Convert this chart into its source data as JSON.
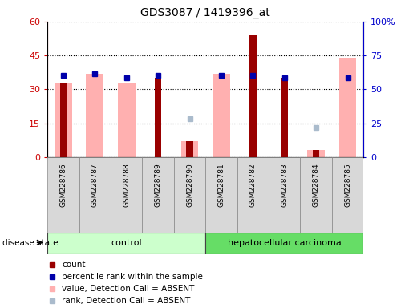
{
  "title": "GDS3087 / 1419396_at",
  "samples": [
    "GSM228786",
    "GSM228787",
    "GSM228788",
    "GSM228789",
    "GSM228790",
    "GSM228781",
    "GSM228782",
    "GSM228783",
    "GSM228784",
    "GSM228785"
  ],
  "count_values": [
    33,
    0,
    0,
    35,
    7,
    0,
    54,
    35,
    3,
    0
  ],
  "absent_value_bars": [
    33,
    37,
    33,
    0,
    7,
    37,
    0,
    0,
    3,
    44
  ],
  "percentile_dots_left": [
    36,
    37,
    35,
    36,
    null,
    36,
    36,
    35,
    null,
    35
  ],
  "absent_rank_dots_left": [
    null,
    null,
    null,
    null,
    17,
    null,
    null,
    null,
    13,
    null
  ],
  "ylim_left": [
    0,
    60
  ],
  "ylim_right": [
    0,
    100
  ],
  "yticks_left": [
    0,
    15,
    30,
    45,
    60
  ],
  "yticks_right": [
    0,
    25,
    50,
    75,
    100
  ],
  "ytick_labels_left": [
    "0",
    "15",
    "30",
    "45",
    "60"
  ],
  "ytick_labels_right": [
    "0",
    "25",
    "50",
    "75",
    "100%"
  ],
  "colors": {
    "count_bar": "#990000",
    "percentile_dot": "#0000aa",
    "absent_value_bar": "#ffb0b0",
    "absent_rank_dot": "#aabbcc",
    "control_bg": "#ccffcc",
    "carcinoma_bg": "#77ee77",
    "left_axis": "#cc0000",
    "right_axis": "#0000cc"
  },
  "legend_items": [
    {
      "label": "count",
      "color": "#990000",
      "marker": "s"
    },
    {
      "label": "percentile rank within the sample",
      "color": "#0000aa",
      "marker": "s"
    },
    {
      "label": "value, Detection Call = ABSENT",
      "color": "#ffb0b0",
      "marker": "s"
    },
    {
      "label": "rank, Detection Call = ABSENT",
      "color": "#aabbcc",
      "marker": "s"
    }
  ]
}
